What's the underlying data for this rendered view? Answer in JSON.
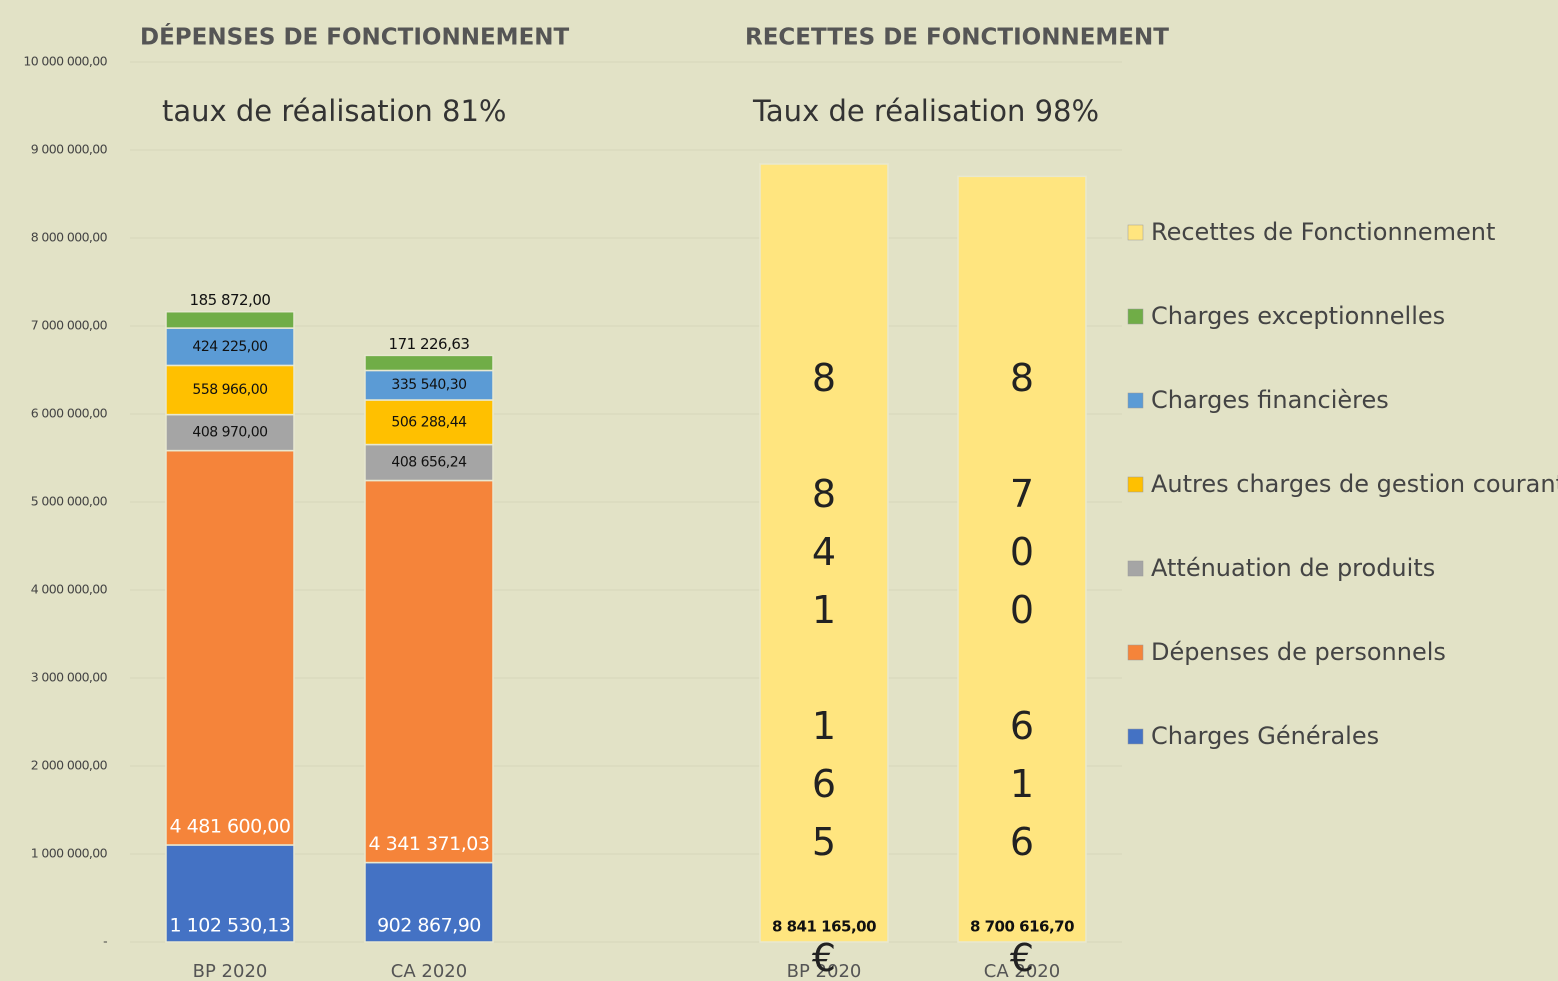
{
  "chart_data": {
    "type": "stacked_bar",
    "titles": [
      "DÉPENSES DE FONCTIONNEMENT",
      "RECETTES DE FONCTIONNEMENT"
    ],
    "annotations": [
      "taux de réalisation 81%",
      "Taux de réalisation 98%",
      "8 841 165 €",
      "8 700 616 €"
    ],
    "categories": [
      "BP 2020",
      "CA 2020",
      "BP 2020",
      "CA 2020"
    ],
    "series": [
      {
        "name": "Charges Générales",
        "color": "#4472c4",
        "values": [
          1102530.13,
          902867.9,
          null,
          null
        ],
        "value_labels": [
          "1 102 530,13",
          "902 867,90",
          null,
          null
        ]
      },
      {
        "name": "Dépenses de personnels",
        "color": "#f5843a",
        "values": [
          4481600.0,
          4341371.03,
          null,
          null
        ],
        "value_labels": [
          "4 481 600,00",
          "4 341 371,03",
          null,
          null
        ]
      },
      {
        "name": "Atténuation de produits",
        "color": "#a5a5a5",
        "values": [
          408970.0,
          408656.24,
          null,
          null
        ],
        "value_labels": [
          "408 970,00",
          "408 656,24",
          null,
          null
        ]
      },
      {
        "name": "Autres charges de gestion courante",
        "color": "#ffc000",
        "values": [
          558966.0,
          506288.44,
          null,
          null
        ],
        "value_labels": [
          "558 966,00",
          "506 288,44",
          null,
          null
        ]
      },
      {
        "name": "Charges financières",
        "color": "#5b9bd5",
        "values": [
          424225.0,
          335540.3,
          null,
          null
        ],
        "value_labels": [
          "424 225,00",
          "335 540,30",
          null,
          null
        ]
      },
      {
        "name": "Charges exceptionnelles",
        "color": "#70ad47",
        "values": [
          185872.0,
          171226.63,
          null,
          null
        ],
        "value_labels": [
          "185 872,00",
          "171 226,63",
          null,
          null
        ]
      },
      {
        "name": "Recettes de Fonctionnement",
        "color": "#ffe57f",
        "values": [
          null,
          null,
          8841165.0,
          8700616.7
        ],
        "value_labels": [
          null,
          null,
          "8 841 165,00",
          "8 700 616,70"
        ]
      }
    ],
    "ylim": [
      0,
      10000000
    ],
    "yticks": [
      {
        "value": 0,
        "label": "-"
      },
      {
        "value": 1000000,
        "label": "1 000 000,00"
      },
      {
        "value": 2000000,
        "label": "2 000 000,00"
      },
      {
        "value": 3000000,
        "label": "3 000 000,00"
      },
      {
        "value": 4000000,
        "label": "4 000 000,00"
      },
      {
        "value": 5000000,
        "label": "5 000 000,00"
      },
      {
        "value": 6000000,
        "label": "6 000 000,00"
      },
      {
        "value": 7000000,
        "label": "7 000 000,00"
      },
      {
        "value": 8000000,
        "label": "8 000 000,00"
      },
      {
        "value": 9000000,
        "label": "9 000 000,00"
      },
      {
        "value": 10000000,
        "label": "10 000 000,00"
      }
    ],
    "grid": true,
    "legend": "right"
  }
}
